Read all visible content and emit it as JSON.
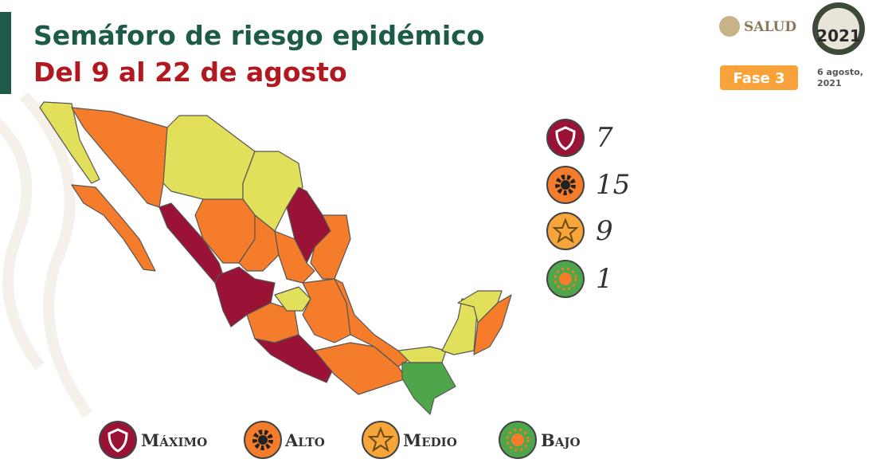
{
  "header": {
    "title": "Semáforo de riesgo epidémico",
    "subtitle": "Del 9 al 22 de agosto",
    "logo_text": "SALUD",
    "year_badge": "2021",
    "phase": "Fase 3",
    "date_lines": [
      "6 agosto,",
      "2021"
    ]
  },
  "summary": [
    {
      "count": 7
    },
    {
      "count": 15
    },
    {
      "count": 9
    },
    {
      "count": 1
    }
  ],
  "legend": [
    "Máximo",
    "Alto",
    "Medio",
    "Bajo"
  ]
}
